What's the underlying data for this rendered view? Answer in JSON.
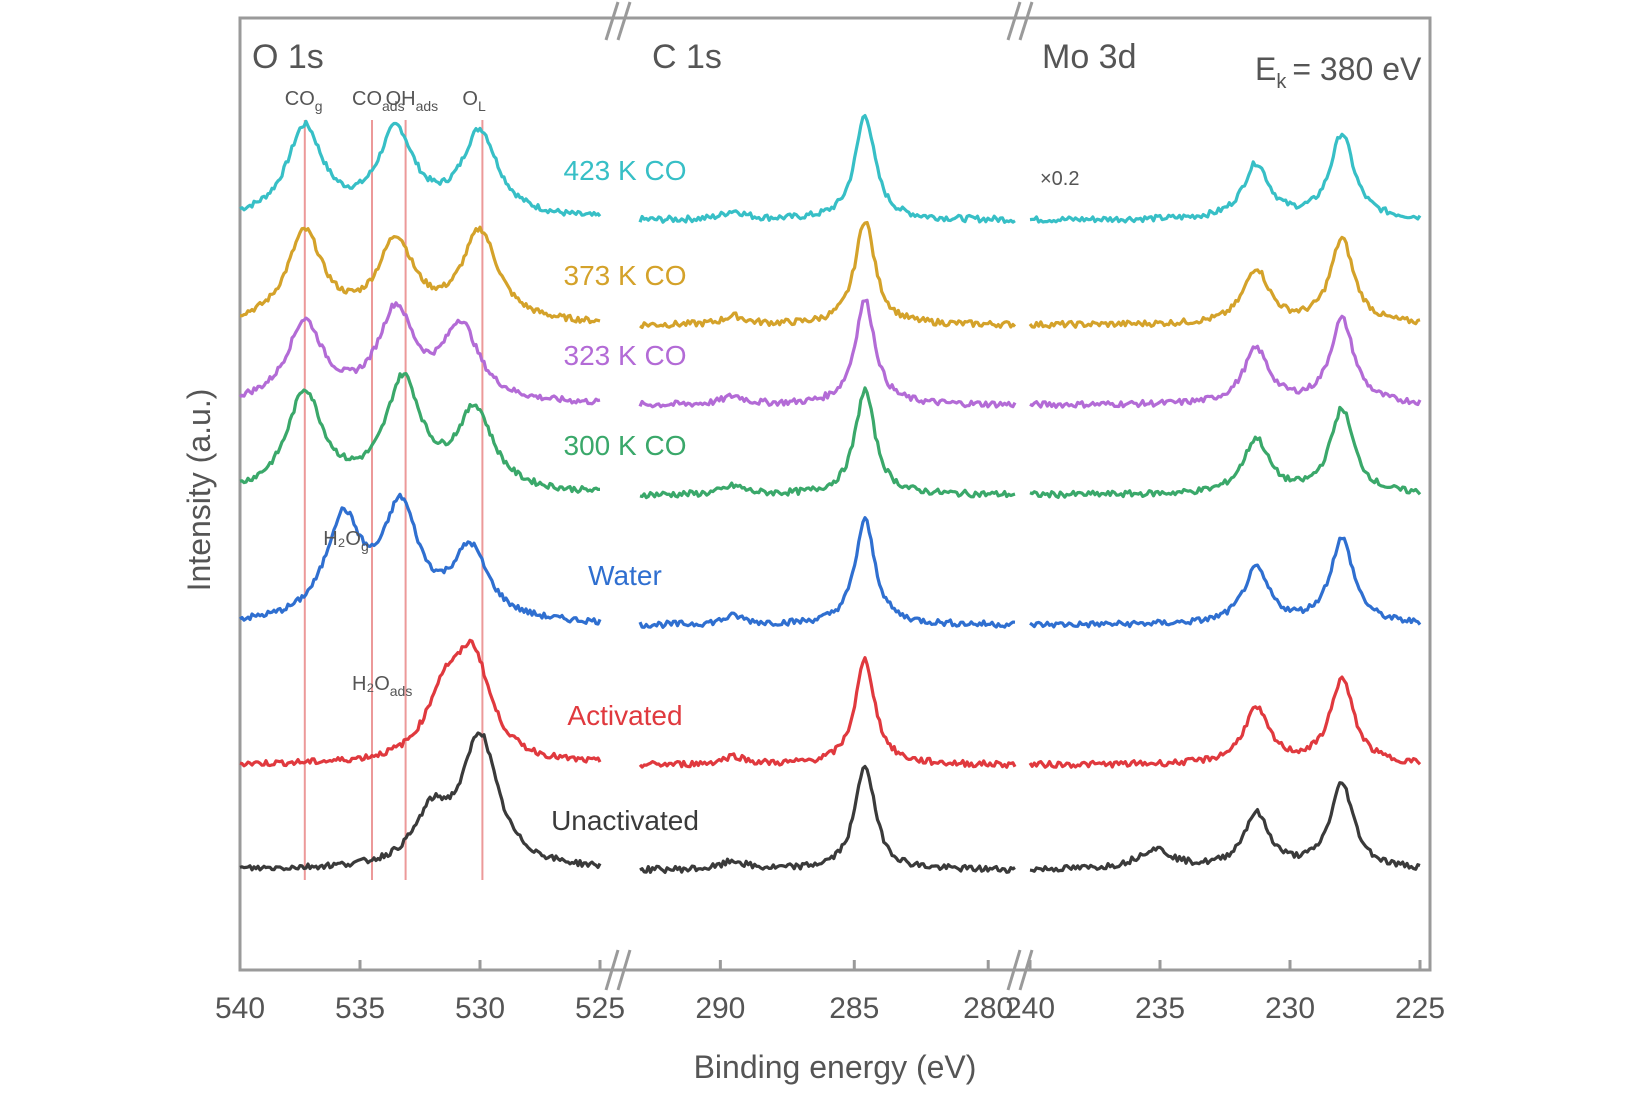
{
  "chart_data": {
    "type": "line",
    "xlabel": "Binding energy (eV)",
    "ylabel": "Intensity (a.u.)",
    "photon_energy_label": "E",
    "photon_energy_sub": "k",
    "photon_energy_value": "= 380 eV",
    "scale_note": "×0.2",
    "grid": false,
    "regions": [
      {
        "id": "o1s",
        "title": "O 1s",
        "x_range": [
          540,
          525
        ],
        "ticks": [
          540,
          535,
          530,
          525
        ],
        "tick_labels": [
          "540",
          "535",
          "530",
          "525"
        ],
        "peaks": [
          {
            "center": 533.5,
            "height": 0.9,
            "width": 0.75
          },
          {
            "center": 530.0,
            "height": 0.85,
            "width": 0.9
          }
        ],
        "markers": [
          537.3,
          534.5,
          533.1,
          529.9
        ]
      },
      {
        "id": "c1s",
        "title": "C 1s",
        "x_range": [
          293,
          279
        ],
        "ticks": [
          290,
          285,
          280
        ],
        "tick_labels": [
          "290",
          "285",
          "280"
        ],
        "peaks": [
          {
            "center": 284.6,
            "height": 1.0,
            "width": 0.45
          },
          {
            "center": 289.5,
            "height": 0.08,
            "width": 0.5
          }
        ]
      },
      {
        "id": "mo3d",
        "title": "Mo 3d",
        "x_range": [
          240,
          225
        ],
        "ticks": [
          240,
          235,
          230,
          225
        ],
        "tick_labels": [
          "240",
          "235",
          "230",
          "225"
        ],
        "peaks": [
          {
            "center": 231.3,
            "height": 0.55,
            "width": 0.6
          },
          {
            "center": 228.0,
            "height": 0.85,
            "width": 0.55
          }
        ]
      }
    ],
    "annotations": [
      {
        "text": "CO",
        "sub": "g",
        "x": 537.3,
        "level": 0
      },
      {
        "text": "CO",
        "sub": "ads",
        "x": 534.5,
        "level": 0
      },
      {
        "text": "OH",
        "sub": "ads",
        "x": 533.1,
        "level": 0
      },
      {
        "text": "O",
        "sub": "L",
        "x": 529.9,
        "level": 0
      },
      {
        "text": "H₂O",
        "sub": "g",
        "x": 535.7,
        "level": 4
      },
      {
        "text": "H₂O",
        "sub": "ads",
        "x": 534.5,
        "level": 5
      }
    ],
    "series": [
      {
        "name": "423 K CO",
        "color": "#37bfc6",
        "offset": 7,
        "o1s_peaks": [
          [
            537.3,
            0.9
          ],
          [
            533.5,
            0.85
          ],
          [
            530.0,
            0.85
          ]
        ]
      },
      {
        "name": "373 K CO",
        "color": "#d4a22a",
        "offset": 6,
        "o1s_peaks": [
          [
            537.3,
            0.9
          ],
          [
            533.5,
            0.8
          ],
          [
            530.0,
            0.9
          ]
        ]
      },
      {
        "name": "323 K CO",
        "color": "#b36bd6",
        "offset": 5,
        "o1s_peaks": [
          [
            537.3,
            0.8
          ],
          [
            533.5,
            0.9
          ],
          [
            530.8,
            0.75
          ]
        ]
      },
      {
        "name": "300 K CO",
        "color": "#3aa86a",
        "offset": 4,
        "o1s_peaks": [
          [
            537.3,
            1.0
          ],
          [
            533.2,
            1.1
          ],
          [
            530.2,
            0.8
          ]
        ]
      },
      {
        "name": "Water",
        "color": "#2f6fd0",
        "offset": 3,
        "o1s_peaks": [
          [
            535.7,
            1.0
          ],
          [
            533.3,
            1.1
          ],
          [
            530.4,
            0.7
          ]
        ]
      },
      {
        "name": "Activated",
        "color": "#e0393e",
        "offset": 2,
        "o1s_peaks": [
          [
            530.3,
            1.0
          ],
          [
            531.5,
            0.6
          ]
        ]
      },
      {
        "name": "Unactivated",
        "color": "#3a3a3a",
        "offset": 1,
        "o1s_peaks": [
          [
            530.0,
            1.3
          ],
          [
            532.0,
            0.5
          ]
        ]
      }
    ]
  }
}
